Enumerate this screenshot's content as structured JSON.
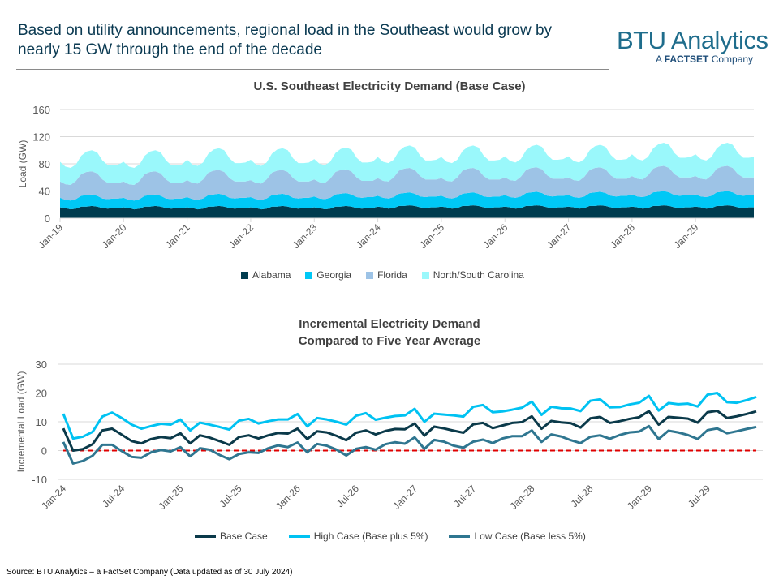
{
  "header": {
    "headline": "Based on utility announcements, regional load in the Southeast would grow by nearly 15 GW through the end of the decade",
    "logo_main": "BTU Analytics",
    "logo_sub_prefix": "A ",
    "logo_sub_brand": "FACTSET",
    "logo_sub_suffix": " Company"
  },
  "source": "Source: BTU Analytics – a FactSet Company (Data updated as of 30 July 2024)",
  "colors": {
    "Alabama": "#003c4f",
    "Georgia": "#00c8f6",
    "Florida": "#9dc3e6",
    "North/South Carolina": "#9af8fb",
    "Base Case": "#0b3a4a",
    "High Case (Base plus 5%)": "#00c2f2",
    "Low Case (Base less 5%)": "#2f7690",
    "zero_line": "#e00000"
  },
  "chart_data": [
    {
      "type": "area",
      "stacked": true,
      "title": "U.S. Southeast Electricity Demand (Base Case)",
      "xlabel": "",
      "ylabel": "Load (GW)",
      "ylim": [
        0,
        160
      ],
      "yticks": [
        "0",
        "40",
        "80",
        "120",
        "160"
      ],
      "grid": true,
      "legend": "bottom",
      "x_start": "Jan-19",
      "x_end": "Dec-29",
      "frequency": "monthly",
      "xticks": [
        "Jan-19",
        "Jan-20",
        "Jan-21",
        "Jan-22",
        "Jan-23",
        "Jan-24",
        "Jan-25",
        "Jan-26",
        "Jan-27",
        "Jan-28",
        "Jan-29"
      ],
      "series": [
        {
          "name": "Alabama",
          "values": [
            16,
            15,
            13,
            14,
            17,
            17,
            18,
            17,
            15,
            14,
            15,
            15,
            16,
            15,
            13,
            14,
            17,
            17,
            18,
            17,
            15,
            14,
            15,
            15,
            16,
            15,
            13,
            14,
            17,
            17,
            18,
            17,
            15,
            14,
            15,
            15,
            16,
            15,
            13,
            14,
            17,
            17,
            18,
            17,
            15,
            14,
            15,
            15,
            16,
            15,
            13,
            14,
            17,
            17,
            18,
            17,
            15,
            14,
            15,
            15,
            17,
            16,
            14,
            15,
            18,
            18,
            19,
            18,
            16,
            15,
            16,
            16,
            17,
            16,
            14,
            15,
            18,
            18,
            19,
            18,
            16,
            15,
            16,
            16,
            17,
            16,
            14,
            15,
            18,
            18,
            19,
            18,
            16,
            15,
            16,
            16,
            17,
            16,
            14,
            15,
            18,
            18,
            19,
            18,
            16,
            15,
            16,
            16,
            17,
            16,
            14,
            15,
            18,
            18,
            19,
            18,
            16,
            15,
            16,
            16,
            17,
            16,
            14,
            15,
            18,
            18,
            19,
            18,
            16,
            15,
            16,
            16
          ]
        },
        {
          "name": "Georgia",
          "values": [
            14,
            12,
            13,
            14,
            16,
            17,
            17,
            16,
            14,
            14,
            14,
            14,
            14,
            12,
            13,
            14,
            16,
            17,
            17,
            16,
            14,
            14,
            14,
            14,
            15,
            13,
            14,
            15,
            17,
            18,
            18,
            17,
            15,
            15,
            15,
            15,
            15,
            13,
            14,
            15,
            17,
            18,
            18,
            17,
            15,
            15,
            15,
            15,
            16,
            14,
            15,
            16,
            18,
            19,
            19,
            18,
            16,
            16,
            16,
            16,
            16,
            14,
            15,
            16,
            18,
            19,
            19,
            18,
            16,
            16,
            16,
            16,
            16,
            14,
            15,
            16,
            18,
            19,
            19,
            18,
            16,
            16,
            16,
            16,
            17,
            15,
            16,
            17,
            19,
            20,
            20,
            19,
            17,
            17,
            17,
            17,
            17,
            15,
            16,
            17,
            19,
            20,
            20,
            19,
            17,
            17,
            17,
            17,
            18,
            16,
            17,
            18,
            20,
            21,
            21,
            20,
            18,
            18,
            18,
            18,
            18,
            16,
            17,
            18,
            20,
            21,
            21,
            20,
            18,
            18,
            18,
            18
          ]
        },
        {
          "name": "Florida",
          "values": [
            24,
            23,
            23,
            27,
            32,
            34,
            34,
            33,
            28,
            24,
            23,
            23,
            24,
            23,
            23,
            27,
            32,
            34,
            34,
            33,
            28,
            24,
            23,
            23,
            25,
            24,
            24,
            28,
            33,
            35,
            35,
            34,
            29,
            25,
            24,
            24,
            25,
            24,
            24,
            28,
            33,
            35,
            35,
            34,
            29,
            25,
            24,
            24,
            25,
            24,
            24,
            28,
            33,
            35,
            35,
            34,
            29,
            25,
            24,
            24,
            26,
            25,
            25,
            29,
            34,
            36,
            36,
            35,
            30,
            26,
            25,
            25,
            26,
            25,
            25,
            29,
            34,
            36,
            36,
            35,
            30,
            26,
            25,
            25,
            26,
            25,
            25,
            29,
            34,
            36,
            36,
            35,
            30,
            26,
            25,
            25,
            26,
            25,
            25,
            29,
            34,
            36,
            36,
            35,
            30,
            26,
            25,
            25,
            27,
            26,
            26,
            30,
            35,
            37,
            37,
            36,
            31,
            27,
            26,
            26,
            27,
            26,
            26,
            30,
            35,
            37,
            37,
            36,
            31,
            27,
            26,
            26
          ]
        },
        {
          "name": "North/South Carolina",
          "values": [
            29,
            26,
            25,
            24,
            27,
            30,
            31,
            31,
            28,
            26,
            26,
            27,
            29,
            26,
            25,
            24,
            27,
            30,
            31,
            31,
            28,
            26,
            26,
            27,
            30,
            27,
            26,
            25,
            28,
            31,
            32,
            32,
            29,
            27,
            27,
            28,
            30,
            27,
            26,
            25,
            28,
            31,
            32,
            32,
            29,
            27,
            27,
            28,
            30,
            27,
            26,
            25,
            28,
            31,
            32,
            32,
            29,
            27,
            27,
            28,
            31,
            28,
            27,
            26,
            29,
            32,
            33,
            33,
            30,
            28,
            28,
            29,
            31,
            28,
            27,
            26,
            29,
            32,
            33,
            33,
            30,
            28,
            28,
            29,
            31,
            28,
            27,
            26,
            29,
            32,
            33,
            33,
            30,
            28,
            28,
            29,
            31,
            28,
            27,
            26,
            29,
            32,
            33,
            33,
            30,
            28,
            28,
            29,
            32,
            29,
            28,
            27,
            30,
            33,
            34,
            34,
            31,
            29,
            29,
            30,
            32,
            29,
            28,
            27,
            30,
            33,
            34,
            34,
            31,
            29,
            29,
            30
          ]
        }
      ]
    },
    {
      "type": "line",
      "title": "Incremental Electricity Demand\nCompared to Five Year Average",
      "title_lines": [
        "Incremental Electricity Demand",
        "Compared to Five Year Average"
      ],
      "xlabel": "",
      "ylabel": "Incremental Load (GW)",
      "ylim": [
        -10,
        30
      ],
      "yticks": [
        "-10",
        "0",
        "10",
        "20",
        "30"
      ],
      "grid": true,
      "legend": "bottom",
      "x_start": "Jan-24",
      "x_end": "Dec-29",
      "frequency": "monthly",
      "reference_line": 0,
      "xticks": [
        "Jan-24",
        "Jul-24",
        "Jan-25",
        "Jul-25",
        "Jan-26",
        "Jul-26",
        "Jan-27",
        "Jul-27",
        "Jan-28",
        "Jul-28",
        "Jan-29",
        "Jul-29"
      ],
      "series": [
        {
          "name": "Base Case",
          "values": [
            7.7,
            0,
            0.5,
            2.2,
            7,
            7.6,
            5.5,
            3.3,
            2.5,
            4,
            4.7,
            4.3,
            6,
            2.5,
            5.3,
            4.5,
            3.3,
            2,
            4.7,
            5.3,
            4.2,
            5.3,
            6.1,
            5.9,
            7.6,
            4,
            6.7,
            6.3,
            5.1,
            3.6,
            6.2,
            7,
            5.6,
            6.8,
            7.5,
            7.4,
            9.4,
            5.2,
            8.3,
            7.7,
            6.9,
            6.2,
            9.1,
            9.6,
            7.8,
            8.7,
            9.6,
            9.9,
            11.9,
            7.6,
            10.3,
            9.8,
            9.5,
            8,
            11.2,
            11.7,
            9.6,
            10.2,
            11,
            11.6,
            13.7,
            9,
            11.7,
            11.4,
            11.1,
            9.7,
            13.3,
            13.8,
            11.3,
            11.9,
            12.7,
            13.6
          ]
        },
        {
          "name": "High Case (Base plus 5%)",
          "values": [
            12.8,
            4.2,
            4.8,
            6.5,
            11.8,
            13.2,
            11.3,
            9,
            7.6,
            8.5,
            9.3,
            9,
            10.8,
            7,
            9.7,
            9,
            8.2,
            7.3,
            10.4,
            11,
            9.4,
            10.2,
            10.8,
            10.8,
            12.7,
            8.4,
            11.3,
            10.8,
            10,
            9,
            12.1,
            13,
            10.7,
            11.4,
            12,
            12.2,
            14.5,
            10,
            12.8,
            12.5,
            12.2,
            11.8,
            15.2,
            15.8,
            13.3,
            13.6,
            14.2,
            14.9,
            17,
            12.4,
            15.2,
            14.7,
            14.6,
            13.7,
            17.3,
            17.8,
            15,
            15.1,
            16,
            16.6,
            19,
            13.9,
            16.5,
            16.1,
            16.3,
            15.3,
            19.4,
            20,
            16.8,
            16.6,
            17.5,
            18.6
          ]
        },
        {
          "name": "Low Case (Base less 5%)",
          "values": [
            3,
            -4.5,
            -3.6,
            -1.8,
            2,
            2,
            -0.2,
            -2.2,
            -2.5,
            -0.6,
            0.2,
            -0.3,
            1.2,
            -2,
            0.8,
            0.3,
            -1.5,
            -3,
            -1.2,
            -0.6,
            -0.8,
            0.8,
            1.8,
            1.2,
            2.8,
            -0.6,
            2.3,
            1.7,
            0.3,
            -1.7,
            0.6,
            1.2,
            0.3,
            2.2,
            2.9,
            2.4,
            4.6,
            0.6,
            3.7,
            3.1,
            1.7,
            1,
            3.1,
            3.8,
            2.6,
            4.2,
            5,
            5,
            7,
            3,
            5.6,
            4.9,
            3.6,
            2.6,
            4.8,
            5.3,
            4.1,
            5.4,
            6.3,
            6.6,
            8.5,
            4,
            6.9,
            6.3,
            5.4,
            4,
            7.1,
            7.7,
            6,
            6.7,
            7.5,
            8.2
          ]
        }
      ]
    }
  ]
}
